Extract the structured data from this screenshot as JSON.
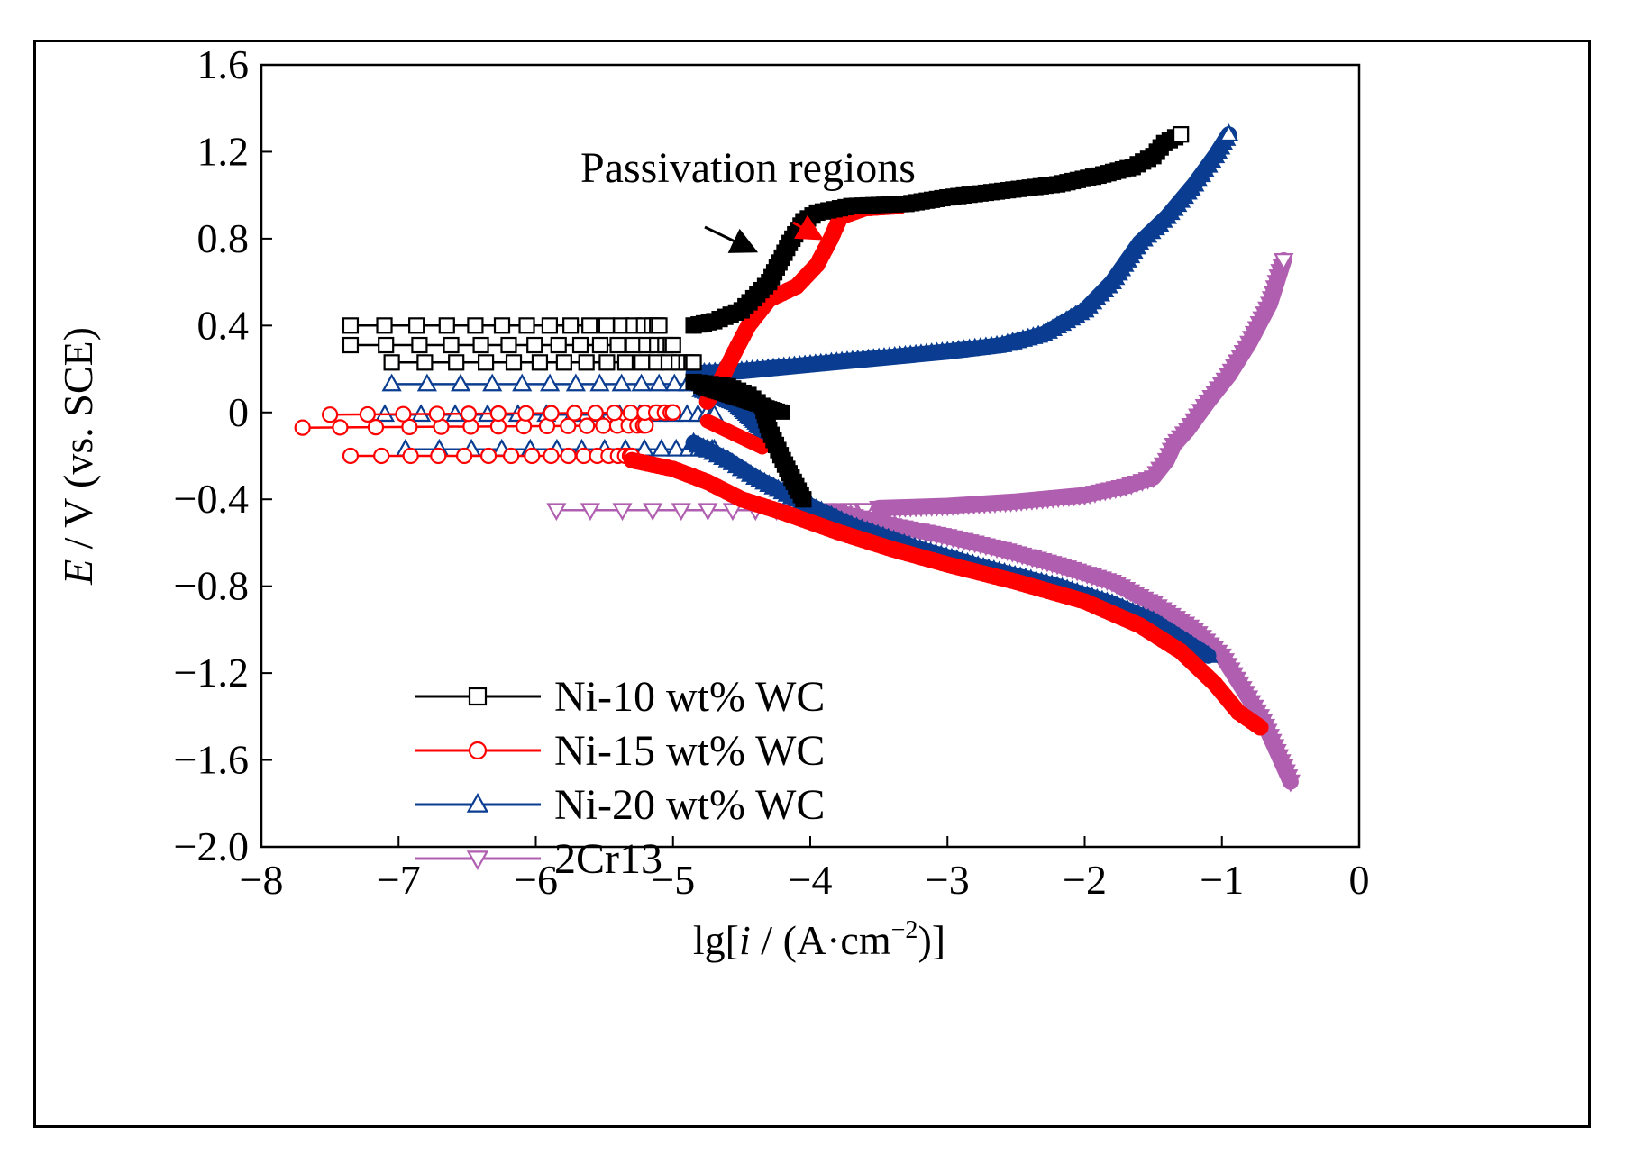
{
  "chart_data": {
    "type": "line",
    "title": "",
    "xlabel": {
      "prefix": "lg[",
      "italic": "i",
      "suffix": " / (A·cm",
      "sup": "−2",
      "close": ")]"
    },
    "ylabel": {
      "italic": "E",
      "rest": " / V (vs. SCE)"
    },
    "xlim": [
      -8,
      0
    ],
    "ylim": [
      -2.0,
      1.6
    ],
    "xticks": [
      -8,
      -7,
      -6,
      -5,
      -4,
      -3,
      -2,
      -1,
      0
    ],
    "xtick_labels": [
      "−8",
      "−7",
      "−6",
      "−5",
      "−4",
      "−3",
      "−2",
      "−1",
      "0"
    ],
    "yticks": [
      1.6,
      1.2,
      0.8,
      0.4,
      0,
      -0.4,
      -0.8,
      -1.2,
      -1.6,
      -2.0
    ],
    "ytick_labels": [
      "1.6",
      "1.2",
      "0.8",
      "0.4",
      "0",
      "−0.4",
      "−0.8",
      "−1.2",
      "−1.6",
      "−2.0"
    ],
    "grid": false,
    "legend_position": "lower-left",
    "annotation": {
      "text": "Passivation regions",
      "arrow_targets": [
        [
          -4.35,
          0.78
        ],
        [
          -3.88,
          0.78
        ]
      ]
    },
    "series": [
      {
        "name": "Ni-10 wt% WC",
        "color": "#000000",
        "marker": "square",
        "anodic": [
          [
            -4.85,
            0.4
          ],
          [
            -4.7,
            0.42
          ],
          [
            -4.5,
            0.47
          ],
          [
            -4.3,
            0.6
          ],
          [
            -4.15,
            0.78
          ],
          [
            -4.05,
            0.88
          ],
          [
            -3.95,
            0.92
          ],
          [
            -3.7,
            0.95
          ],
          [
            -3.3,
            0.96
          ],
          [
            -3.0,
            0.99
          ],
          [
            -2.6,
            1.02
          ],
          [
            -2.2,
            1.05
          ],
          [
            -1.9,
            1.09
          ],
          [
            -1.65,
            1.13
          ],
          [
            -1.5,
            1.18
          ],
          [
            -1.42,
            1.24
          ],
          [
            -1.3,
            1.28
          ]
        ],
        "cathodic": [
          [
            -4.85,
            0.14
          ],
          [
            -4.6,
            0.12
          ],
          [
            -4.45,
            0.08
          ],
          [
            -4.35,
            0.03
          ],
          [
            -4.3,
            -0.08
          ],
          [
            -4.2,
            -0.22
          ],
          [
            -4.12,
            -0.32
          ],
          [
            -4.05,
            -0.4
          ]
        ],
        "branches": [
          [
            [
              -7.35,
              0.4
            ],
            [
              -5.1,
              0.4
            ]
          ],
          [
            [
              -7.35,
              0.31
            ],
            [
              -5.0,
              0.31
            ]
          ],
          [
            [
              -7.05,
              0.23
            ],
            [
              -4.85,
              0.23
            ]
          ],
          [
            [
              -4.8,
              0.12
            ],
            [
              -4.5,
              0.06
            ],
            [
              -4.35,
              0.03
            ],
            [
              -4.2,
              0.0
            ]
          ]
        ]
      },
      {
        "name": "Ni-15 wt% WC",
        "color": "#ff0000",
        "marker": "circle",
        "anodic": [
          [
            -4.75,
            0.05
          ],
          [
            -4.65,
            0.15
          ],
          [
            -4.55,
            0.28
          ],
          [
            -4.45,
            0.4
          ],
          [
            -4.3,
            0.52
          ],
          [
            -4.1,
            0.58
          ],
          [
            -3.95,
            0.68
          ],
          [
            -3.85,
            0.8
          ],
          [
            -3.78,
            0.9
          ],
          [
            -3.6,
            0.94
          ],
          [
            -3.35,
            0.95
          ]
        ],
        "cathodic": [
          [
            -5.3,
            -0.22
          ],
          [
            -5.0,
            -0.26
          ],
          [
            -4.75,
            -0.32
          ],
          [
            -4.5,
            -0.4
          ],
          [
            -4.2,
            -0.46
          ],
          [
            -3.8,
            -0.55
          ],
          [
            -3.4,
            -0.63
          ],
          [
            -3.0,
            -0.7
          ],
          [
            -2.5,
            -0.78
          ],
          [
            -2.0,
            -0.87
          ],
          [
            -1.6,
            -0.98
          ],
          [
            -1.3,
            -1.1
          ],
          [
            -1.05,
            -1.25
          ],
          [
            -0.88,
            -1.38
          ],
          [
            -0.72,
            -1.45
          ]
        ],
        "branches": [
          [
            [
              -7.7,
              -0.07
            ],
            [
              -5.2,
              -0.06
            ]
          ],
          [
            [
              -7.5,
              -0.01
            ],
            [
              -5.0,
              0.0
            ]
          ],
          [
            [
              -7.35,
              -0.2
            ],
            [
              -5.3,
              -0.2
            ]
          ],
          [
            [
              -4.75,
              -0.04
            ],
            [
              -4.45,
              -0.13
            ],
            [
              -4.35,
              -0.16
            ]
          ]
        ]
      },
      {
        "name": "Ni-20 wt% WC",
        "color": "#0a3d91",
        "marker": "triangle-up",
        "anodic": [
          [
            -4.85,
            0.18
          ],
          [
            -4.5,
            0.19
          ],
          [
            -4.0,
            0.22
          ],
          [
            -3.5,
            0.25
          ],
          [
            -3.0,
            0.28
          ],
          [
            -2.6,
            0.31
          ],
          [
            -2.3,
            0.36
          ],
          [
            -2.0,
            0.47
          ],
          [
            -1.8,
            0.6
          ],
          [
            -1.6,
            0.78
          ],
          [
            -1.4,
            0.9
          ],
          [
            -1.2,
            1.05
          ],
          [
            -1.05,
            1.18
          ],
          [
            -0.95,
            1.28
          ]
        ],
        "cathodic": [
          [
            -4.85,
            -0.14
          ],
          [
            -4.6,
            -0.22
          ],
          [
            -4.4,
            -0.3
          ],
          [
            -4.1,
            -0.4
          ],
          [
            -3.7,
            -0.52
          ],
          [
            -3.2,
            -0.63
          ],
          [
            -2.7,
            -0.72
          ],
          [
            -2.2,
            -0.8
          ],
          [
            -1.8,
            -0.88
          ],
          [
            -1.5,
            -0.96
          ],
          [
            -1.25,
            -1.06
          ],
          [
            -1.1,
            -1.12
          ]
        ],
        "branches": [
          [
            [
              -7.05,
              0.13
            ],
            [
              -4.7,
              0.13
            ]
          ],
          [
            [
              -7.1,
              -0.01
            ],
            [
              -4.7,
              -0.01
            ]
          ],
          [
            [
              -6.95,
              -0.17
            ],
            [
              -4.7,
              -0.17
            ]
          ],
          [
            [
              -4.8,
              0.1
            ],
            [
              -4.55,
              0.04
            ],
            [
              -4.4,
              -0.05
            ],
            [
              -4.3,
              -0.12
            ]
          ]
        ]
      },
      {
        "name": "2Cr13",
        "color": "#b05fb0",
        "marker": "triangle-down",
        "anodic": [
          [
            -3.5,
            -0.44
          ],
          [
            -3.0,
            -0.43
          ],
          [
            -2.5,
            -0.41
          ],
          [
            -2.0,
            -0.38
          ],
          [
            -1.7,
            -0.34
          ],
          [
            -1.5,
            -0.3
          ],
          [
            -1.4,
            -0.22
          ],
          [
            -1.35,
            -0.15
          ],
          [
            -1.25,
            -0.08
          ],
          [
            -1.1,
            0.05
          ],
          [
            -0.95,
            0.17
          ],
          [
            -0.8,
            0.32
          ],
          [
            -0.65,
            0.5
          ],
          [
            -0.55,
            0.7
          ]
        ],
        "cathodic": [
          [
            -3.8,
            -0.46
          ],
          [
            -3.4,
            -0.52
          ],
          [
            -3.0,
            -0.57
          ],
          [
            -2.6,
            -0.63
          ],
          [
            -2.2,
            -0.7
          ],
          [
            -1.8,
            -0.78
          ],
          [
            -1.5,
            -0.88
          ],
          [
            -1.2,
            -1.0
          ],
          [
            -1.0,
            -1.12
          ],
          [
            -0.85,
            -1.27
          ],
          [
            -0.7,
            -1.42
          ],
          [
            -0.6,
            -1.56
          ],
          [
            -0.5,
            -1.7
          ]
        ],
        "branches": [
          [
            [
              -5.85,
              -0.45
            ],
            [
              -3.6,
              -0.45
            ]
          ]
        ]
      }
    ]
  }
}
